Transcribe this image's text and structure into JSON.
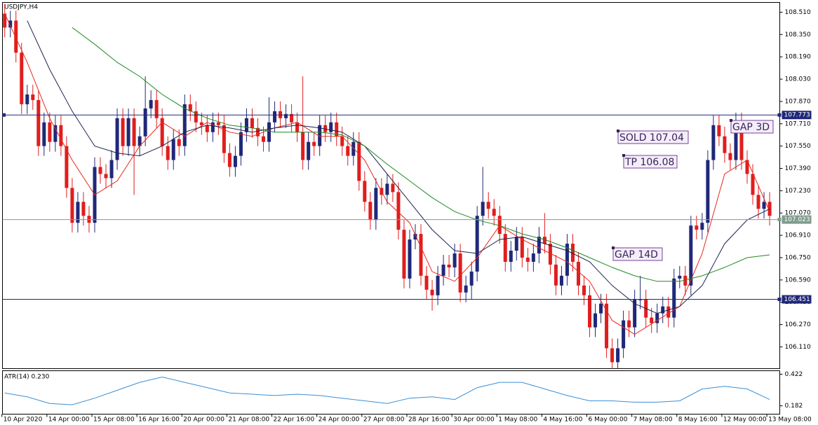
{
  "chart_data": {
    "type": "candlestick",
    "title": "USDJPY,H4",
    "up_color": "#1f2878",
    "down_color": "#e11d1d",
    "xlim": [
      -0.4,
      137.8
    ],
    "xticks": [
      {
        "value": 0,
        "label": "10 Apr 2020"
      },
      {
        "value": 8,
        "label": "14 Apr 00:00"
      },
      {
        "value": 16,
        "label": "15 Apr 08:00"
      },
      {
        "value": 24,
        "label": "16 Apr 16:00"
      },
      {
        "value": 32,
        "label": "20 Apr 00:00"
      },
      {
        "value": 40,
        "label": "21 Apr 08:00"
      },
      {
        "value": 48,
        "label": "22 Apr 16:00"
      },
      {
        "value": 56,
        "label": "24 Apr 00:00"
      },
      {
        "value": 64,
        "label": "27 Apr 08:00"
      },
      {
        "value": 72,
        "label": "28 Apr 16:00"
      },
      {
        "value": 80,
        "label": "30 Apr 00:00"
      },
      {
        "value": 88,
        "label": "1 May 08:00"
      },
      {
        "value": 96,
        "label": "4 May 16:00"
      },
      {
        "value": 104,
        "label": "6 May 00:00"
      },
      {
        "value": 112,
        "label": "7 May 08:00"
      },
      {
        "value": 120,
        "label": "8 May 16:00"
      },
      {
        "value": 128,
        "label": "12 May 00:00"
      },
      {
        "value": 136,
        "label": "13 May 08:00"
      }
    ],
    "ylim": [
      105.954,
      108.58
    ],
    "yticks": [
      {
        "value": 108.51,
        "label": "108.510"
      },
      {
        "value": 108.35,
        "label": "108.350"
      },
      {
        "value": 108.19,
        "label": "108.190"
      },
      {
        "value": 108.03,
        "label": "108.030"
      },
      {
        "value": 107.87,
        "label": "107.870"
      },
      {
        "value": 107.71,
        "label": "107.710"
      },
      {
        "value": 107.55,
        "label": "107.550"
      },
      {
        "value": 107.39,
        "label": "107.390"
      },
      {
        "value": 107.23,
        "label": "107.230"
      },
      {
        "value": 107.07,
        "label": "107.070"
      },
      {
        "value": 106.91,
        "label": "106.910"
      },
      {
        "value": 106.75,
        "label": "106.750"
      },
      {
        "value": 106.59,
        "label": "106.590"
      },
      {
        "value": 106.43,
        "label": "106.430"
      },
      {
        "value": 106.27,
        "label": "106.270"
      },
      {
        "value": 106.11,
        "label": "106.110"
      }
    ],
    "open": [
      108.5,
      108.4,
      108.45,
      108.22,
      107.85,
      107.92,
      107.88,
      107.55,
      107.72,
      107.58,
      107.7,
      107.55,
      107.25,
      107.0,
      107.15,
      107.05,
      107.0,
      107.4,
      107.35,
      107.32,
      107.45,
      107.75,
      107.55,
      107.75,
      107.55,
      107.62,
      107.82,
      107.88,
      107.75,
      107.55,
      107.45,
      107.6,
      107.55,
      107.85,
      107.8,
      107.72,
      107.7,
      107.65,
      107.72,
      107.7,
      107.5,
      107.4,
      107.48,
      107.65,
      107.75,
      107.68,
      107.62,
      107.58,
      107.72,
      107.8,
      107.75,
      107.78,
      107.72,
      107.65,
      107.45,
      107.58,
      107.55,
      107.7,
      107.65,
      107.72,
      107.62,
      107.55,
      107.48,
      107.58,
      107.3,
      107.15,
      107.02,
      107.25,
      107.2,
      107.28,
      107.22,
      106.95,
      106.6,
      106.88,
      106.92,
      106.62,
      106.52,
      106.48,
      106.62,
      106.7,
      106.68,
      106.78,
      106.5,
      106.55,
      106.65,
      107.05,
      107.15,
      107.1,
      107.05,
      106.92,
      106.72,
      106.8,
      106.9,
      106.75,
      106.72,
      106.78,
      106.9,
      106.85,
      106.7,
      106.55,
      106.62,
      106.85,
      106.72,
      106.55,
      106.48,
      106.25,
      106.35,
      106.42,
      106.1,
      106.0,
      106.1,
      106.3,
      106.25,
      106.45,
      106.45,
      106.32,
      106.28,
      106.35,
      106.4,
      106.32,
      106.6,
      106.62,
      106.55,
      106.98,
      106.95,
      107.0,
      107.45,
      107.7,
      107.62,
      107.5,
      107.45,
      107.72,
      107.45,
      107.35,
      107.2,
      107.1,
      107.15
    ],
    "high": [
      108.57,
      108.52,
      108.52,
      108.29,
      107.99,
      107.99,
      107.95,
      107.79,
      107.79,
      107.77,
      107.77,
      107.62,
      107.32,
      107.22,
      107.22,
      107.12,
      107.47,
      107.47,
      107.42,
      107.52,
      107.82,
      107.82,
      107.82,
      107.82,
      107.69,
      108.05,
      107.95,
      107.95,
      107.82,
      107.62,
      107.67,
      107.67,
      107.92,
      107.92,
      107.87,
      107.79,
      107.77,
      107.79,
      107.79,
      107.77,
      107.57,
      107.55,
      107.72,
      107.82,
      107.82,
      107.75,
      107.69,
      107.9,
      107.87,
      107.87,
      107.85,
      107.85,
      107.79,
      108.05,
      107.65,
      107.65,
      107.77,
      107.77,
      107.79,
      107.79,
      107.69,
      107.62,
      107.65,
      107.65,
      107.37,
      107.22,
      107.32,
      107.32,
      107.35,
      107.35,
      107.29,
      107.02,
      106.95,
      106.99,
      106.99,
      106.69,
      106.59,
      106.69,
      106.77,
      106.77,
      106.85,
      106.85,
      106.62,
      106.72,
      107.12,
      107.4,
      107.22,
      107.17,
      107.12,
      106.99,
      106.87,
      106.97,
      106.97,
      106.82,
      106.85,
      106.97,
      107.07,
      106.92,
      106.77,
      106.69,
      106.92,
      106.92,
      106.79,
      106.62,
      106.55,
      106.42,
      106.49,
      106.49,
      106.17,
      106.17,
      106.37,
      106.37,
      106.52,
      106.62,
      106.52,
      106.39,
      106.42,
      106.47,
      106.47,
      106.67,
      106.69,
      106.69,
      107.05,
      107.05,
      107.07,
      107.52,
      107.77,
      107.77,
      107.69,
      107.57,
      107.79,
      107.79,
      107.52,
      107.42,
      107.27,
      107.22,
      107.22
    ],
    "low": [
      108.33,
      108.33,
      108.15,
      107.78,
      107.78,
      107.81,
      107.48,
      107.48,
      107.51,
      107.51,
      107.48,
      107.18,
      106.93,
      106.93,
      106.98,
      106.93,
      106.93,
      107.28,
      107.25,
      107.25,
      107.38,
      107.48,
      107.48,
      107.2,
      107.48,
      107.55,
      107.75,
      107.68,
      107.48,
      107.38,
      107.38,
      107.48,
      107.48,
      107.73,
      107.65,
      107.63,
      107.58,
      107.58,
      107.63,
      107.43,
      107.33,
      107.33,
      107.41,
      107.58,
      107.61,
      107.55,
      107.51,
      107.51,
      107.65,
      107.68,
      107.68,
      107.65,
      107.58,
      107.38,
      107.38,
      107.48,
      107.48,
      107.58,
      107.58,
      107.55,
      107.48,
      107.41,
      107.41,
      107.23,
      107.08,
      106.95,
      106.95,
      107.13,
      107.13,
      107.15,
      106.88,
      106.53,
      106.53,
      106.81,
      106.55,
      106.45,
      106.37,
      106.41,
      106.55,
      106.61,
      106.61,
      106.43,
      106.43,
      106.45,
      106.58,
      106.98,
      107.03,
      106.98,
      106.85,
      106.65,
      106.65,
      106.73,
      106.68,
      106.65,
      106.65,
      106.71,
      106.78,
      106.63,
      106.48,
      106.48,
      106.55,
      106.65,
      106.48,
      106.41,
      106.18,
      106.18,
      106.28,
      106.03,
      105.93,
      105.93,
      106.03,
      106.18,
      106.18,
      106.38,
      106.25,
      106.21,
      106.21,
      106.28,
      106.25,
      106.25,
      106.53,
      106.48,
      106.48,
      106.88,
      106.88,
      106.93,
      107.38,
      107.55,
      107.43,
      107.38,
      107.38,
      107.38,
      107.28,
      107.13,
      107.03,
      107.03,
      106.98
    ],
    "close": [
      108.4,
      108.45,
      108.22,
      107.85,
      107.92,
      107.88,
      107.55,
      107.72,
      107.58,
      107.7,
      107.55,
      107.25,
      107.0,
      107.15,
      107.05,
      107.0,
      107.4,
      107.35,
      107.32,
      107.45,
      107.75,
      107.55,
      107.75,
      107.55,
      107.62,
      107.82,
      107.88,
      107.75,
      107.55,
      107.45,
      107.6,
      107.55,
      107.85,
      107.8,
      107.72,
      107.7,
      107.65,
      107.72,
      107.7,
      107.5,
      107.4,
      107.48,
      107.65,
      107.75,
      107.68,
      107.62,
      107.58,
      107.72,
      107.8,
      107.75,
      107.78,
      107.72,
      107.65,
      107.45,
      107.58,
      107.55,
      107.7,
      107.65,
      107.72,
      107.62,
      107.55,
      107.48,
      107.58,
      107.3,
      107.15,
      107.02,
      107.25,
      107.2,
      107.28,
      107.22,
      106.95,
      106.6,
      106.88,
      106.92,
      106.62,
      106.52,
      106.48,
      106.62,
      106.7,
      106.68,
      106.78,
      106.5,
      106.55,
      106.65,
      107.05,
      107.15,
      107.1,
      107.05,
      106.92,
      106.72,
      106.8,
      106.9,
      106.75,
      106.72,
      106.78,
      106.9,
      106.85,
      106.7,
      106.55,
      106.62,
      106.85,
      106.72,
      106.55,
      106.48,
      106.25,
      106.35,
      106.42,
      106.1,
      106.0,
      106.1,
      106.3,
      106.25,
      106.45,
      106.45,
      106.32,
      106.28,
      106.35,
      106.4,
      106.32,
      106.6,
      106.62,
      106.55,
      106.98,
      106.95,
      107.0,
      107.45,
      107.7,
      107.62,
      107.5,
      107.45,
      107.72,
      107.45,
      107.35,
      107.2,
      107.1,
      107.15,
      107.05
    ],
    "series": [
      {
        "color": "#e8281e",
        "x": [
          0,
          4,
          8,
          12,
          16,
          20,
          24,
          28,
          32,
          36,
          40,
          44,
          48,
          52,
          56,
          60,
          64,
          68,
          72,
          76,
          80,
          84,
          88,
          92,
          96,
          100,
          104,
          108,
          112,
          116,
          120,
          124,
          128,
          132,
          136
        ],
        "values": [
          108.5,
          108.15,
          107.75,
          107.45,
          107.2,
          107.3,
          107.55,
          107.72,
          107.62,
          107.72,
          107.65,
          107.62,
          107.68,
          107.72,
          107.62,
          107.62,
          107.45,
          107.15,
          107.0,
          106.65,
          106.58,
          106.75,
          106.98,
          106.88,
          106.8,
          106.72,
          106.58,
          106.3,
          106.2,
          106.3,
          106.4,
          106.78,
          107.35,
          107.45,
          107.08
        ]
      },
      {
        "color": "#1c2250",
        "x": [
          0,
          4,
          8,
          12,
          16,
          20,
          24,
          28,
          32,
          36,
          40,
          44,
          48,
          52,
          56,
          60,
          64,
          68,
          72,
          76,
          80,
          84,
          88,
          92,
          96,
          100,
          104,
          108,
          112,
          116,
          120,
          124,
          128,
          132,
          136
        ],
        "values": [
          null,
          108.45,
          108.1,
          107.8,
          107.55,
          107.5,
          107.48,
          107.55,
          107.65,
          107.7,
          107.68,
          107.65,
          107.68,
          107.7,
          107.68,
          107.65,
          107.55,
          107.35,
          107.15,
          106.95,
          106.8,
          106.78,
          106.88,
          106.9,
          106.85,
          106.8,
          106.72,
          106.55,
          106.42,
          106.35,
          106.4,
          106.55,
          106.85,
          107.02,
          107.1
        ]
      },
      {
        "color": "#1e8a1e",
        "x": [
          0,
          4,
          8,
          12,
          16,
          20,
          24,
          28,
          32,
          36,
          40,
          44,
          48,
          52,
          56,
          60,
          64,
          68,
          72,
          76,
          80,
          84,
          88,
          92,
          96,
          100,
          104,
          108,
          112,
          116,
          120,
          124,
          128,
          132,
          136
        ],
        "values": [
          null,
          null,
          null,
          108.4,
          108.28,
          108.15,
          108.05,
          107.92,
          107.82,
          107.75,
          107.7,
          107.68,
          107.65,
          107.65,
          107.65,
          107.63,
          107.55,
          107.42,
          107.3,
          107.18,
          107.08,
          107.02,
          106.98,
          106.92,
          106.88,
          106.82,
          106.75,
          106.68,
          106.62,
          106.58,
          106.58,
          106.62,
          106.68,
          106.75,
          106.77
        ]
      }
    ],
    "levels": [
      {
        "value": 107.773,
        "label": "107.773",
        "color": "#1f2878"
      },
      {
        "value": 107.023,
        "label": "107.023",
        "color": "#7f9c8c"
      },
      {
        "value": 106.451,
        "label": "106.451",
        "color": "#1f2878"
      }
    ],
    "annotations": [
      "SOLD 107.04",
      "TP 106.08",
      "GAP 14D",
      "GAP 3D"
    ],
    "indicator": {
      "type": "line",
      "title": "ATR(14) 0.230",
      "color": "#3a8fd6",
      "ylim": [
        0.119,
        0.448
      ],
      "yticks": [
        0.422,
        0.182
      ],
      "x": [
        0,
        4,
        8,
        12,
        16,
        20,
        24,
        28,
        32,
        36,
        40,
        44,
        48,
        52,
        56,
        60,
        64,
        68,
        72,
        76,
        80,
        84,
        88,
        92,
        96,
        100,
        104,
        108,
        112,
        116,
        120,
        124,
        128,
        132,
        136
      ],
      "values": [
        0.28,
        0.25,
        0.2,
        0.19,
        0.24,
        0.3,
        0.36,
        0.4,
        0.36,
        0.32,
        0.28,
        0.27,
        0.26,
        0.27,
        0.26,
        0.24,
        0.22,
        0.2,
        0.24,
        0.25,
        0.23,
        0.32,
        0.36,
        0.36,
        0.31,
        0.26,
        0.22,
        0.22,
        0.21,
        0.21,
        0.22,
        0.31,
        0.33,
        0.31,
        0.23
      ]
    }
  }
}
